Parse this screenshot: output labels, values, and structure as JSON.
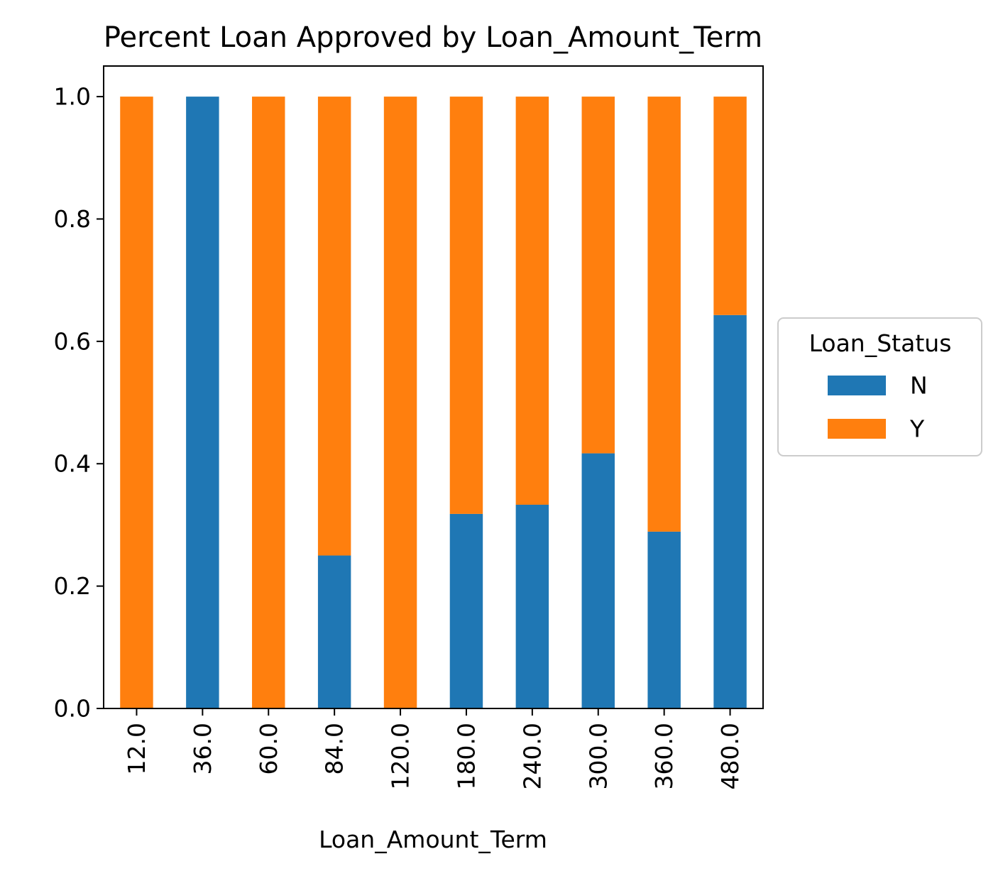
{
  "chart_data": {
    "type": "bar",
    "stacked": true,
    "title": "Percent Loan Approved by Loan_Amount_Term",
    "xlabel": "Loan_Amount_Term",
    "ylabel": "",
    "ylim": [
      0,
      1.05
    ],
    "yticks": [
      "0.0",
      "0.2",
      "0.4",
      "0.6",
      "0.8",
      "1.0"
    ],
    "ytick_values": [
      0,
      0.2,
      0.4,
      0.6,
      0.8,
      1.0
    ],
    "categories": [
      "12.0",
      "36.0",
      "60.0",
      "84.0",
      "120.0",
      "180.0",
      "240.0",
      "300.0",
      "360.0",
      "480.0"
    ],
    "series": [
      {
        "name": "N",
        "color": "#1f77b4",
        "values": [
          0.0,
          1.0,
          0.0,
          0.25,
          0.0,
          0.318,
          0.333,
          0.417,
          0.289,
          0.643
        ]
      },
      {
        "name": "Y",
        "color": "#ff7f0e",
        "values": [
          1.0,
          0.0,
          1.0,
          0.75,
          1.0,
          0.682,
          0.667,
          0.583,
          0.711,
          0.357
        ]
      }
    ],
    "grid": false,
    "legend": {
      "title": "Loan_Status",
      "placement": "center-right-outside"
    }
  }
}
